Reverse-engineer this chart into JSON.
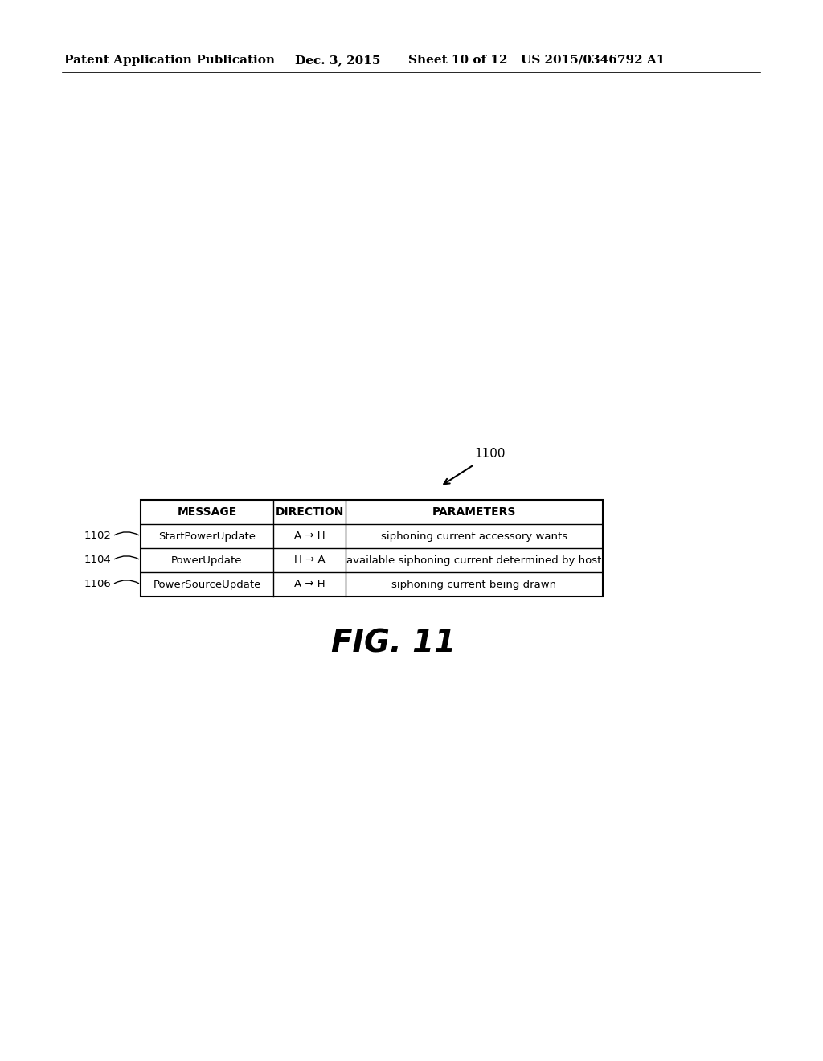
{
  "header_text": "Patent Application Publication",
  "date_text": "Dec. 3, 2015",
  "sheet_text": "Sheet 10 of 12",
  "patent_text": "US 2015/0346792 A1",
  "figure_label": "FIG. 11",
  "table_label": "1100",
  "columns": [
    "MESSAGE",
    "DIRECTION",
    "PARAMETERS"
  ],
  "rows": [
    [
      "StartPowerUpdate",
      "A → H",
      "siphoning current accessory wants"
    ],
    [
      "PowerUpdate",
      "H → A",
      "available siphoning current determined by host"
    ],
    [
      "PowerSourceUpdate",
      "A → H",
      "siphoning current being drawn"
    ]
  ],
  "row_labels": [
    "1102",
    "1104",
    "1106"
  ],
  "background_color": "#ffffff",
  "text_color": "#000000"
}
